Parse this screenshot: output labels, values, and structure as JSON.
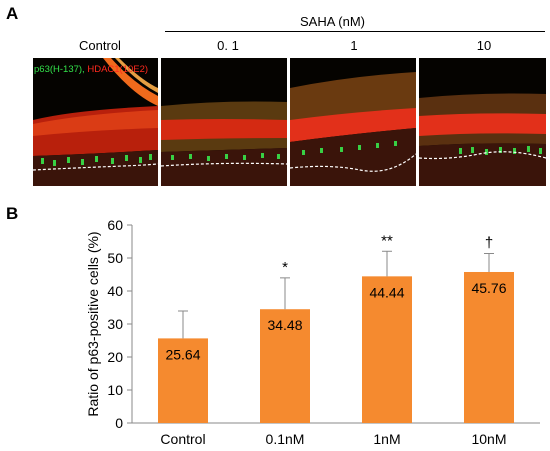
{
  "panel_a": {
    "letter": "A",
    "saha_header": "SAHA (nM)",
    "columns": [
      "Control",
      "0. 1",
      "1",
      "10"
    ],
    "stain_label_green": "p63(H-137),",
    "stain_label_red": "HDAC1(10E2)",
    "colors": {
      "green": "#33e24a",
      "red": "#ff2a1e"
    }
  },
  "panel_b": {
    "letter": "B"
  },
  "chart_data": {
    "type": "bar",
    "categories": [
      "Control",
      "0.1nM",
      "1nM",
      "10nM"
    ],
    "values": [
      25.64,
      34.48,
      44.44,
      45.76
    ],
    "data_labels": [
      "25.64",
      "34.48",
      "44.44",
      "45.76"
    ],
    "error_plus": [
      8.3,
      9.5,
      7.6,
      5.6
    ],
    "significance": [
      "",
      "*",
      "**",
      "†"
    ],
    "ylabel": "Ratio of p63-positive cells (%)",
    "xlabel": "",
    "ylim": [
      0,
      60
    ],
    "yticks": [
      0,
      10,
      20,
      30,
      40,
      50,
      60
    ],
    "grid": false,
    "bar_color": "#f58a2f"
  }
}
